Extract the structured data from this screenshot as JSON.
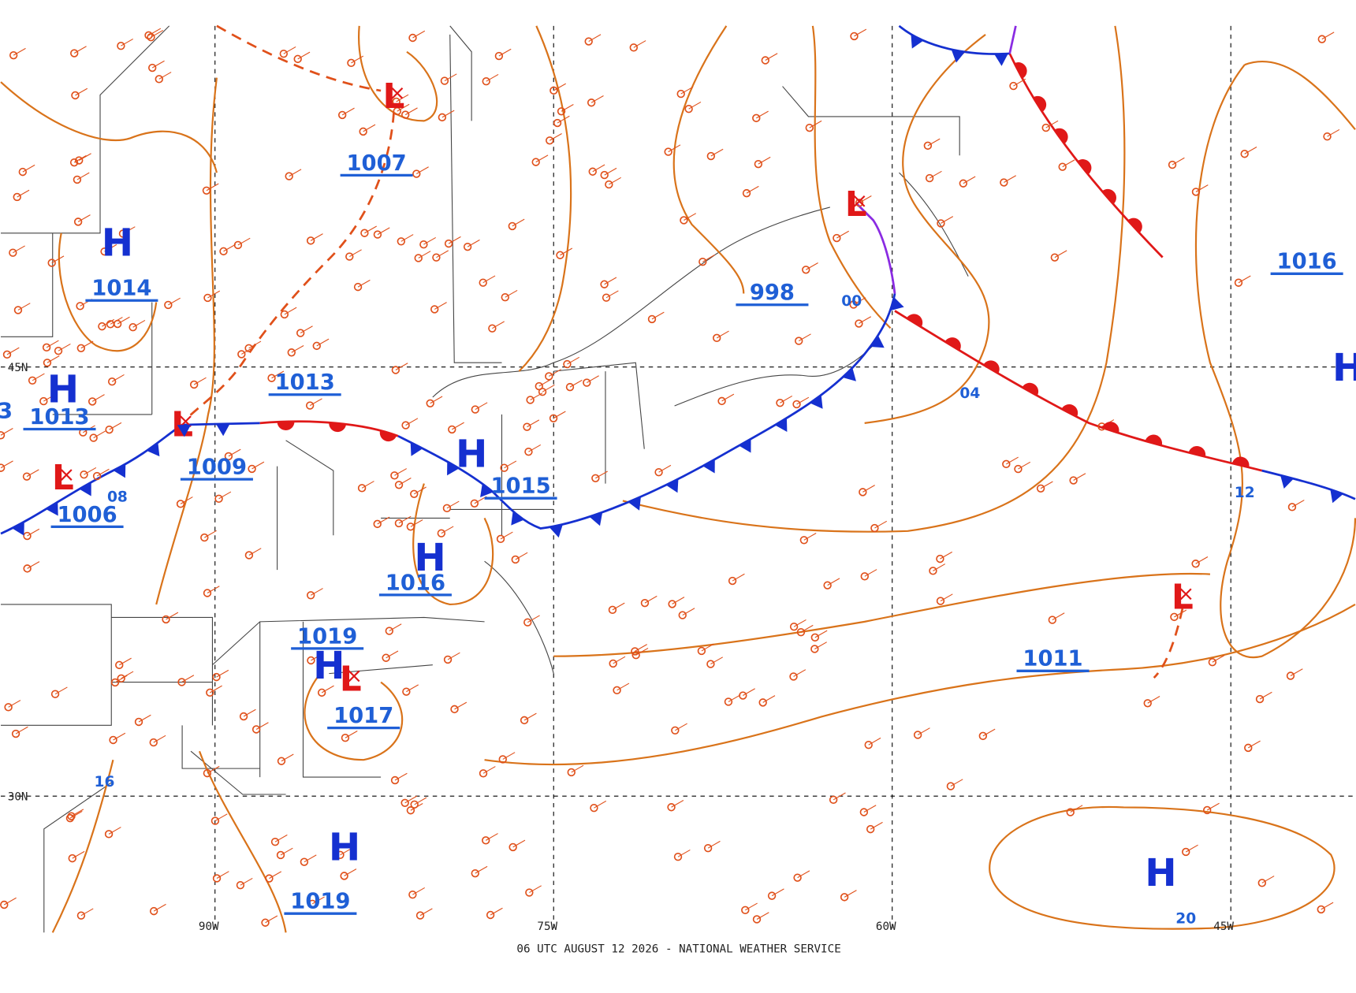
{
  "map": {
    "footer": "06 UTC AUGUST 12 2026 - NATIONAL WEATHER SERVICE",
    "latitudes": [
      "45N",
      "30N"
    ],
    "longitudes": [
      "90W",
      "75W",
      "60W",
      "45W"
    ],
    "highs": [
      "H",
      "H",
      "H",
      "H",
      "H",
      "H",
      "H",
      "H"
    ],
    "lows": [
      "L",
      "L",
      "L",
      "L",
      "L",
      "L"
    ],
    "pressures": [
      "1007",
      "1014",
      "1013",
      "1013",
      "1009",
      "1006",
      "1015",
      "1016",
      "1019",
      "1017",
      "1019",
      "998",
      "1011",
      "1016",
      "3"
    ],
    "isobar_labels": [
      "00",
      "04",
      "12",
      "20",
      "16",
      "08"
    ]
  }
}
